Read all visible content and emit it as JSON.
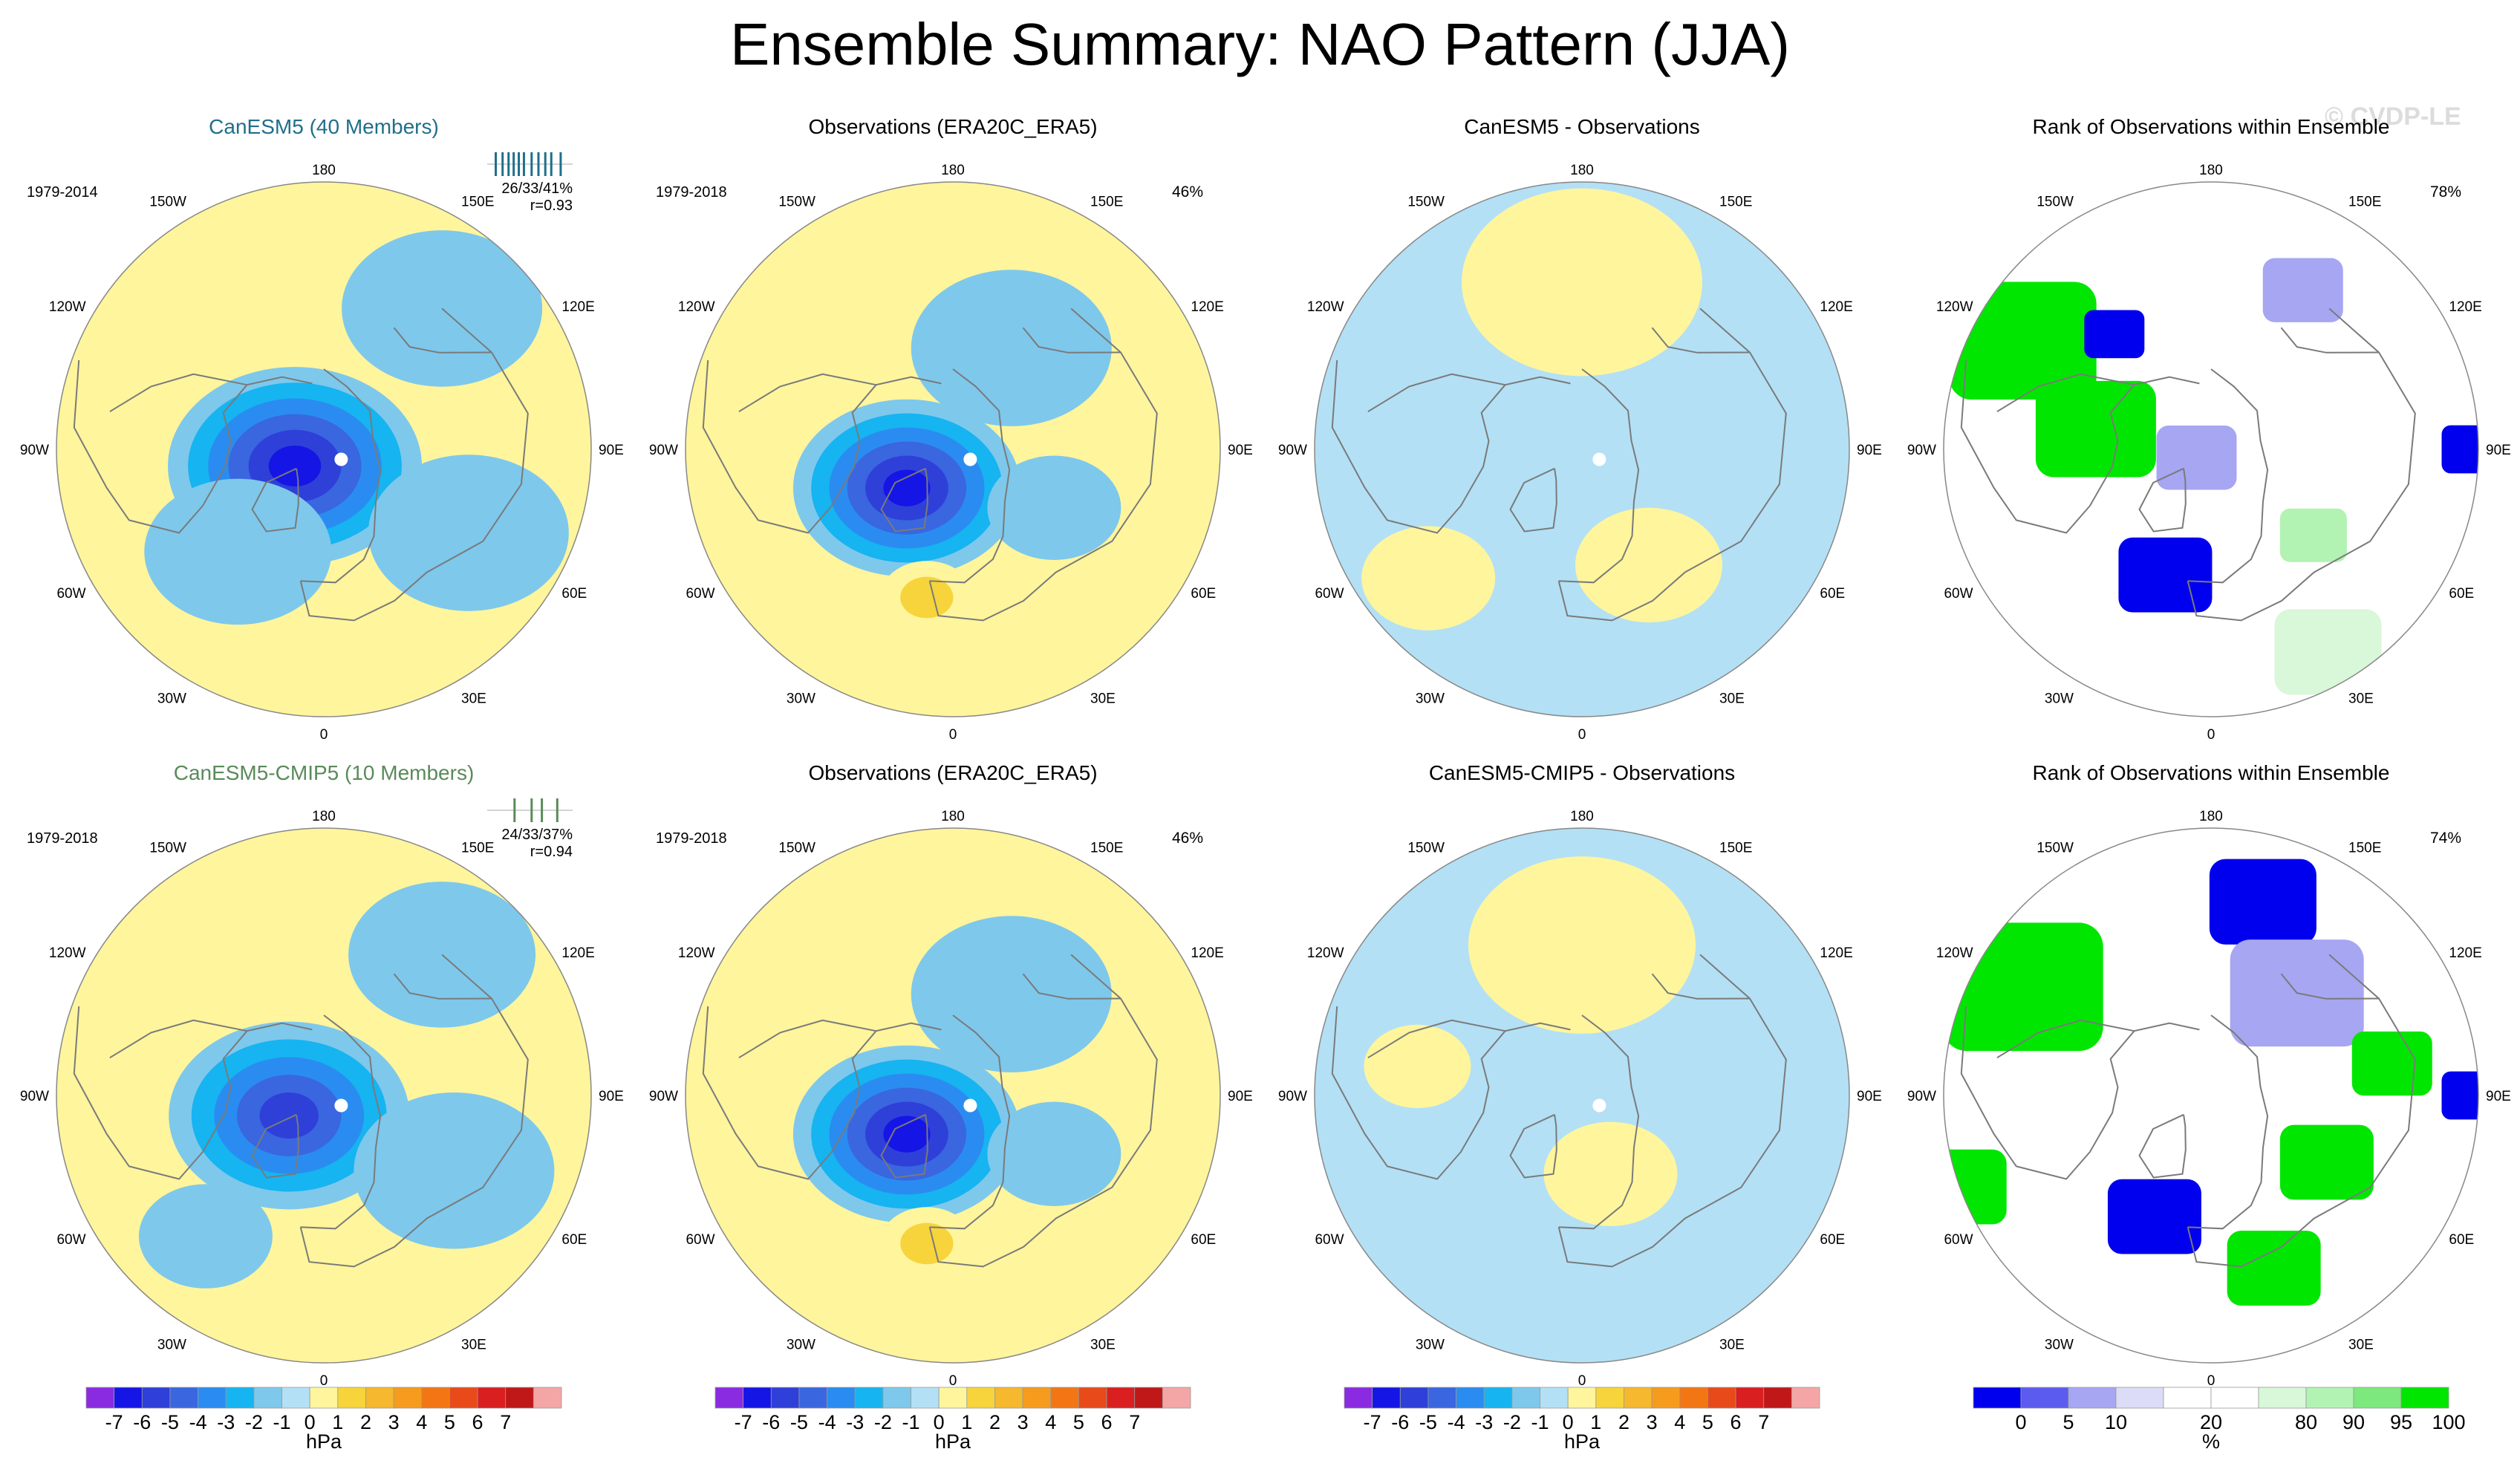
{
  "page": {
    "title": "Ensemble Summary: NAO Pattern (JJA)",
    "watermark": "© CVDP-LE"
  },
  "colors": {
    "ocean_background": "#b3e0f5",
    "land_outline": "#808080",
    "positive_pale": "#fff59d",
    "negative_pale": "#a9dcf2",
    "observation_dot": "#ffffff"
  },
  "chart_data": [
    {
      "type": "heatmap",
      "panel_id": "p1",
      "row": 0,
      "col": 0,
      "kind": "ensemble",
      "title": "CanESM5 (40 Members)",
      "title_color": "#1f6f8b",
      "period": "1979-2014",
      "stats_line1": "26/33/41%",
      "stats_line2": "r=0.93",
      "rank_ticks": [
        0.1,
        0.18,
        0.25,
        0.31,
        0.37,
        0.43,
        0.52,
        0.6,
        0.68,
        0.75,
        0.86
      ],
      "pct_label": "",
      "base_sign": "pos",
      "anomalies": [
        {
          "lon": -60,
          "colat": 10,
          "r": 38,
          "value": -6
        },
        {
          "lon": -40,
          "colat": 40,
          "r": 28,
          "value": -1
        },
        {
          "lon": 60,
          "colat": 50,
          "r": 30,
          "value": -1
        },
        {
          "lon": 140,
          "colat": 55,
          "r": 30,
          "value": -1
        }
      ]
    },
    {
      "type": "heatmap",
      "panel_id": "p2",
      "row": 0,
      "col": 1,
      "kind": "obs",
      "title": "Observations (ERA20C_ERA5)",
      "title_color": "#000000",
      "period": "1979-2018",
      "pct_label": "46%",
      "base_sign": "pos",
      "anomalies": [
        {
          "lon": -50,
          "colat": 18,
          "r": 34,
          "value": -6
        },
        {
          "lon": -10,
          "colat": 45,
          "r": 14,
          "value": 2
        },
        {
          "lon": 150,
          "colat": 35,
          "r": 30,
          "value": -1
        },
        {
          "lon": 60,
          "colat": 35,
          "r": 20,
          "value": -1
        }
      ]
    },
    {
      "type": "heatmap",
      "panel_id": "p3",
      "row": 0,
      "col": 2,
      "kind": "diff",
      "title": "CanESM5 - Observations",
      "title_color": "#000000",
      "pct_label": "",
      "base_sign": "neg",
      "anomalies": [
        {
          "lon": 180,
          "colat": 50,
          "r": 36,
          "value": 1
        },
        {
          "lon": 30,
          "colat": 40,
          "r": 22,
          "value": 1
        },
        {
          "lon": -50,
          "colat": 60,
          "r": 20,
          "value": 1
        }
      ]
    },
    {
      "type": "heatmap",
      "panel_id": "p4",
      "row": 0,
      "col": 3,
      "kind": "rank",
      "title": "Rank of Observations within Ensemble",
      "title_color": "#000000",
      "pct_label": "78%",
      "cells": [
        {
          "lon": -120,
          "colat": 65,
          "r": 22,
          "value": 100
        },
        {
          "lon": -100,
          "colat": 35,
          "r": 18,
          "value": 100
        },
        {
          "lon": -140,
          "colat": 45,
          "r": 9,
          "value": 0
        },
        {
          "lon": -20,
          "colat": 40,
          "r": 14,
          "value": 0
        },
        {
          "lon": 90,
          "colat": 78,
          "r": 9,
          "value": 0
        },
        {
          "lon": 150,
          "colat": 55,
          "r": 12,
          "value": 10
        },
        {
          "lon": 50,
          "colat": 40,
          "r": 10,
          "value": 95
        },
        {
          "lon": 30,
          "colat": 70,
          "r": 16,
          "value": 90
        },
        {
          "lon": -60,
          "colat": 5,
          "r": 12,
          "value": 10
        }
      ]
    },
    {
      "type": "heatmap",
      "panel_id": "p5",
      "row": 1,
      "col": 0,
      "kind": "ensemble",
      "title": "CanESM5-CMIP5 (10 Members)",
      "title_color": "#5a8a5a",
      "period": "1979-2018",
      "stats_line1": "24/33/37%",
      "stats_line2": "r=0.94",
      "rank_ticks": [
        0.32,
        0.52,
        0.64,
        0.82
      ],
      "pct_label": "",
      "base_sign": "pos",
      "anomalies": [
        {
          "lon": -60,
          "colat": 12,
          "r": 36,
          "value": -5
        },
        {
          "lon": 60,
          "colat": 45,
          "r": 30,
          "value": -1
        },
        {
          "lon": 140,
          "colat": 55,
          "r": 28,
          "value": -1
        },
        {
          "lon": -40,
          "colat": 55,
          "r": 20,
          "value": -1
        }
      ]
    },
    {
      "type": "heatmap",
      "panel_id": "p6",
      "row": 1,
      "col": 1,
      "kind": "obs",
      "title": "Observations (ERA20C_ERA5)",
      "title_color": "#000000",
      "period": "1979-2018",
      "pct_label": "46%",
      "base_sign": "pos",
      "anomalies": [
        {
          "lon": -50,
          "colat": 18,
          "r": 34,
          "value": -6
        },
        {
          "lon": -10,
          "colat": 45,
          "r": 14,
          "value": 2
        },
        {
          "lon": 150,
          "colat": 35,
          "r": 30,
          "value": -1
        },
        {
          "lon": 60,
          "colat": 35,
          "r": 20,
          "value": -1
        }
      ]
    },
    {
      "type": "heatmap",
      "panel_id": "p7",
      "row": 1,
      "col": 2,
      "kind": "diff",
      "title": "CanESM5-CMIP5 - Observations",
      "title_color": "#000000",
      "pct_label": "",
      "base_sign": "neg",
      "anomalies": [
        {
          "lon": 180,
          "colat": 45,
          "r": 34,
          "value": 1
        },
        {
          "lon": 20,
          "colat": 25,
          "r": 20,
          "value": 1
        },
        {
          "lon": -100,
          "colat": 50,
          "r": 16,
          "value": 1
        }
      ]
    },
    {
      "type": "heatmap",
      "panel_id": "p8",
      "row": 1,
      "col": 3,
      "kind": "rank",
      "title": "Rank of Observations within Ensemble",
      "title_color": "#000000",
      "pct_label": "74%",
      "cells": [
        {
          "lon": -120,
          "colat": 65,
          "r": 24,
          "value": 100
        },
        {
          "lon": -70,
          "colat": 80,
          "r": 14,
          "value": 100
        },
        {
          "lon": 165,
          "colat": 60,
          "r": 16,
          "value": 0
        },
        {
          "lon": 140,
          "colat": 40,
          "r": 20,
          "value": 10
        },
        {
          "lon": 90,
          "colat": 78,
          "r": 9,
          "value": 0
        },
        {
          "lon": -25,
          "colat": 40,
          "r": 14,
          "value": 0
        },
        {
          "lon": 60,
          "colat": 40,
          "r": 14,
          "value": 100
        },
        {
          "lon": 20,
          "colat": 55,
          "r": 14,
          "value": 100
        },
        {
          "lon": 100,
          "colat": 55,
          "r": 12,
          "value": 100
        }
      ]
    }
  ],
  "map_labels": {
    "lon_labels": [
      "180",
      "150E",
      "120E",
      "90E",
      "60E",
      "30E",
      "0",
      "30W",
      "60W",
      "90W",
      "120W",
      "150W"
    ],
    "lon_values": [
      180,
      150,
      120,
      90,
      60,
      30,
      0,
      -30,
      -60,
      -90,
      -120,
      -150
    ]
  },
  "colorbars": [
    {
      "col": 0,
      "unit": "hPa",
      "colors": [
        "#8a2be2",
        "#1515e6",
        "#2e40d8",
        "#3a66e0",
        "#2a8cf0",
        "#16b4f0",
        "#7ec8ec",
        "#b3e0f5",
        "#fff59d",
        "#f7d43b",
        "#f5b82e",
        "#f59c1e",
        "#f27714",
        "#e84a1a",
        "#d91f1f",
        "#c01818",
        "#f4a6a6"
      ],
      "tick_labels": [
        "-7",
        "-6",
        "-5",
        "-4",
        "-3",
        "-2",
        "-1",
        "0",
        "1",
        "2",
        "3",
        "4",
        "5",
        "6",
        "7"
      ]
    },
    {
      "col": 1,
      "unit": "hPa",
      "colors": [
        "#8a2be2",
        "#1515e6",
        "#2e40d8",
        "#3a66e0",
        "#2a8cf0",
        "#16b4f0",
        "#7ec8ec",
        "#b3e0f5",
        "#fff59d",
        "#f7d43b",
        "#f5b82e",
        "#f59c1e",
        "#f27714",
        "#e84a1a",
        "#d91f1f",
        "#c01818",
        "#f4a6a6"
      ],
      "tick_labels": [
        "-7",
        "-6",
        "-5",
        "-4",
        "-3",
        "-2",
        "-1",
        "0",
        "1",
        "2",
        "3",
        "4",
        "5",
        "6",
        "7"
      ]
    },
    {
      "col": 2,
      "unit": "hPa",
      "colors": [
        "#8a2be2",
        "#1515e6",
        "#2e40d8",
        "#3a66e0",
        "#2a8cf0",
        "#16b4f0",
        "#7ec8ec",
        "#b3e0f5",
        "#fff59d",
        "#f7d43b",
        "#f5b82e",
        "#f59c1e",
        "#f27714",
        "#e84a1a",
        "#d91f1f",
        "#c01818",
        "#f4a6a6"
      ],
      "tick_labels": [
        "-7",
        "-6",
        "-5",
        "-4",
        "-3",
        "-2",
        "-1",
        "0",
        "1",
        "2",
        "3",
        "4",
        "5",
        "6",
        "7"
      ]
    },
    {
      "col": 3,
      "unit": "%",
      "colors": [
        "#0000ee",
        "#5b5bf0",
        "#a6a6f2",
        "#dcdcf7",
        "#ffffff",
        "#ffffff",
        "#d9f7d9",
        "#b2f2b2",
        "#7de87d",
        "#00e600"
      ],
      "tick_labels": [
        "0",
        "5",
        "10",
        "20",
        "80",
        "90",
        "95",
        "100"
      ],
      "tick_positions": [
        1,
        2,
        3,
        5,
        7,
        8,
        9,
        10
      ]
    }
  ]
}
